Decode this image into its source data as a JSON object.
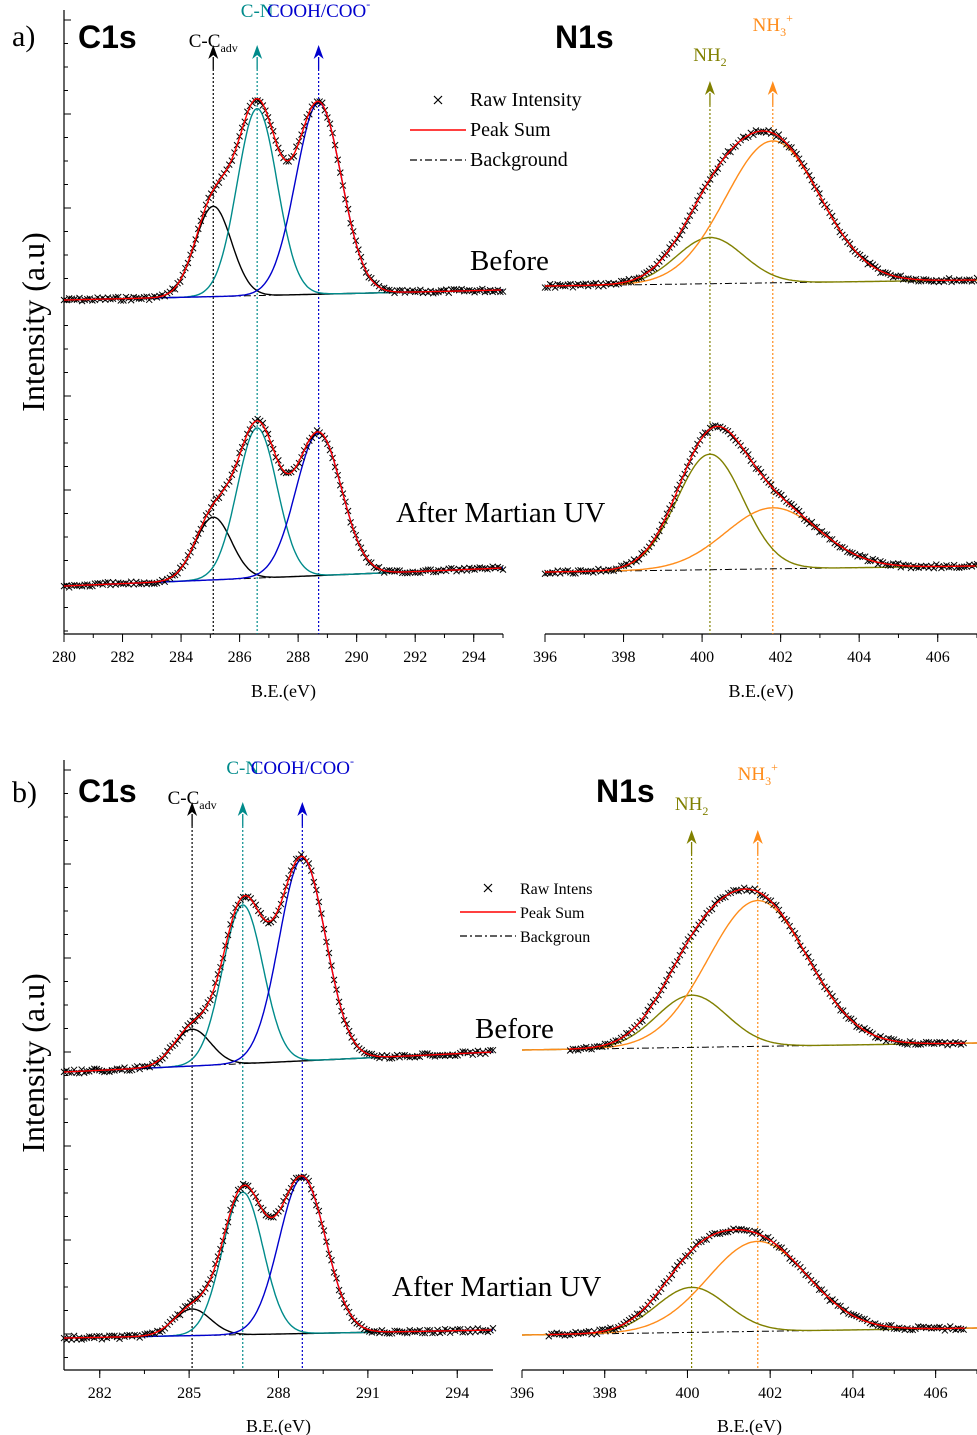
{
  "chart_data": [
    {
      "panel": "a)",
      "type": "line",
      "ylabel": "Intensity (a.u)",
      "conditions": [
        "Before",
        "After Martian UV"
      ],
      "legend": {
        "placement": "top-right of C1s plot",
        "entries": [
          "Raw Intensity",
          "Peak Sum",
          "Background"
        ]
      },
      "plots": [
        {
          "title": "C1s",
          "xlabel": "B.E.(eV)",
          "xlim": [
            280,
            295
          ],
          "xticks": [
            "280",
            "282",
            "284",
            "286",
            "288",
            "290",
            "292",
            "294"
          ],
          "peaks": [
            {
              "label": "C-C",
              "sub": "adv",
              "sup": "",
              "position": 285.1,
              "color": "#000000"
            },
            {
              "label": "C-N",
              "sub": "",
              "sup": "",
              "position": 286.6,
              "color": "#008b8b"
            },
            {
              "label": "COOH/COO",
              "sub": "",
              "sup": "-",
              "position": 288.7,
              "color": "#0000cd"
            }
          ],
          "curves": {
            "Before": {
              "heights": [
                0.42,
                0.87,
                0.89
              ]
            },
            "After Martian UV": {
              "heights": [
                0.33,
                0.79,
                0.75
              ]
            }
          }
        },
        {
          "title": "N1s",
          "xlabel": "B.E.(eV)",
          "xlim": [
            396,
            407
          ],
          "xticks": [
            "396",
            "398",
            "400",
            "402",
            "404",
            "406"
          ],
          "peaks": [
            {
              "label": "NH",
              "sub": "2",
              "sup": "",
              "position": 400.2,
              "color": "#808000"
            },
            {
              "label": "NH",
              "sub": "3",
              "sup": "+",
              "position": 401.8,
              "color": "#ff8c1a"
            }
          ],
          "curves": {
            "Before": {
              "heights": [
                0.28,
                0.86
              ]
            },
            "After Martian UV": {
              "heights": [
                0.7,
                0.37
              ]
            }
          }
        }
      ]
    },
    {
      "panel": "b)",
      "type": "line",
      "ylabel": "Intensity (a.u)",
      "conditions": [
        "Before",
        "After Martian UV"
      ],
      "legend": {
        "placement": "right of C1s plot",
        "entries": [
          "Raw Intens",
          "Peak Sum",
          "Backgroun"
        ]
      },
      "plots": [
        {
          "title": "C1s",
          "xlabel": "B.E.(eV)",
          "xlim": [
            280.8,
            295.2
          ],
          "xticks": [
            "282",
            "285",
            "288",
            "291",
            "294"
          ],
          "peaks": [
            {
              "label": "C-C",
              "sub": "adv",
              "sup": "",
              "position": 285.1,
              "color": "#000000"
            },
            {
              "label": "C-N",
              "sub": "",
              "sup": "",
              "position": 286.8,
              "color": "#008b8b"
            },
            {
              "label": "COOH/COO",
              "sub": "",
              "sup": "-",
              "position": 288.8,
              "color": "#0000cd"
            }
          ],
          "curves": {
            "Before": {
              "heights": [
                0.16,
                0.69,
                0.88
              ]
            },
            "After Martian UV": {
              "heights": [
                0.14,
                0.75,
                0.82
              ]
            }
          }
        },
        {
          "title": "N1s",
          "xlabel": "B.E.(eV)",
          "xlim": [
            396,
            407
          ],
          "xticks": [
            "396",
            "398",
            "400",
            "402",
            "404",
            "406"
          ],
          "peaks": [
            {
              "label": "NH",
              "sub": "2",
              "sup": "",
              "position": 400.1,
              "color": "#808000"
            },
            {
              "label": "NH",
              "sub": "3",
              "sup": "+",
              "position": 401.7,
              "color": "#ff8c1a"
            }
          ],
          "curves": {
            "Before": {
              "heights": [
                0.29,
                0.81
              ]
            },
            "After Martian UV": {
              "heights": [
                0.3,
                0.6
              ]
            }
          }
        }
      ]
    }
  ],
  "colors": {
    "raw": "#000000",
    "peak_sum": "#ff0000",
    "background": "#000000"
  }
}
